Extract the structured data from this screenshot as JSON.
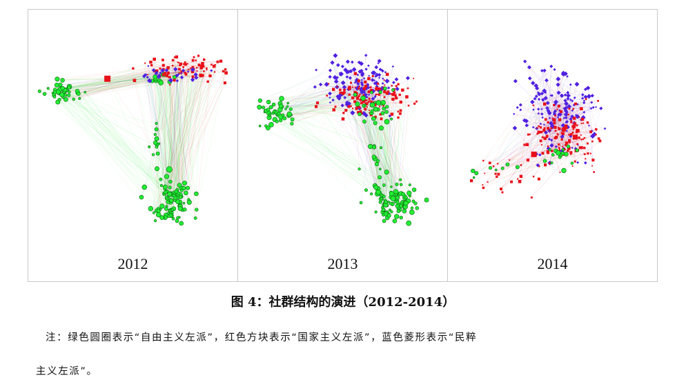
{
  "figure": {
    "panels": [
      {
        "year": "2012"
      },
      {
        "year": "2013"
      },
      {
        "year": "2014"
      }
    ],
    "caption": "图 4：社群结构的演进（2012-2014）",
    "note_line1": "注：绿色圆圈表示“自由主义左派”，红色方块表示“国家主义左派”，蓝色菱形表示“民粹",
    "note_line2": "主义左派”。"
  },
  "colors": {
    "liberal_left_green": "#22ee33",
    "statist_left_red": "#e8101a",
    "populist_left_blue": "#5020e0",
    "frame_border": "#c8c8c8"
  }
}
